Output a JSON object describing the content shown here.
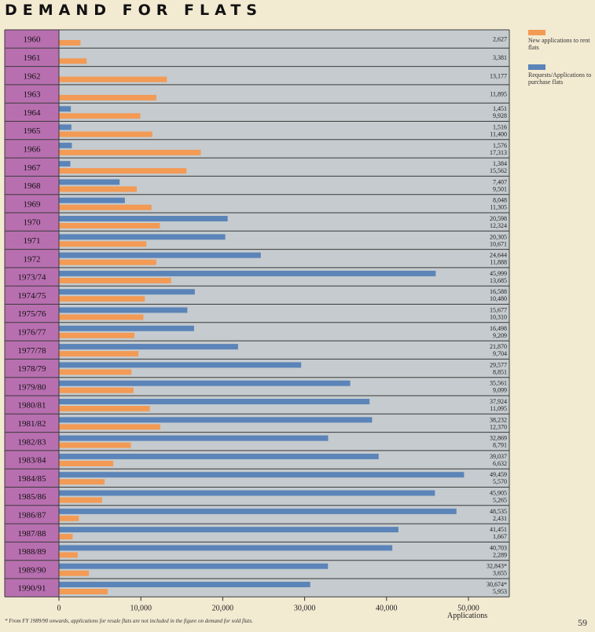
{
  "page": {
    "title": "DEMAND FOR FLATS",
    "footnote": "* From FY 1989/90 onwards, applications for resale flats are not included in the figure on demand for sold flats.",
    "page_number": "59"
  },
  "colors": {
    "rent": "#f39a55",
    "purchase": "#5b84b8",
    "plot_bg": "#c5cbce",
    "label_bg": "#b86fb0"
  },
  "chart_data": {
    "type": "bar",
    "orientation": "horizontal",
    "title": "DEMAND FOR FLATS",
    "xlabel": "Applications",
    "xlim": [
      0,
      55000
    ],
    "xticks": [
      "0",
      "10,000",
      "20,000",
      "30,000",
      "40,000",
      "50,000"
    ],
    "xtick_values": [
      0,
      10000,
      20000,
      30000,
      40000,
      50000
    ],
    "legend": {
      "placement": "right",
      "rent_label": "New applications to rent flats",
      "purchase_label": "Requests/Applications to purchase flats"
    },
    "categories": [
      "1960",
      "1961",
      "1962",
      "1963",
      "1964",
      "1965",
      "1966",
      "1967",
      "1968",
      "1969",
      "1970",
      "1971",
      "1972",
      "1973/74",
      "1974/75",
      "1975/76",
      "1976/77",
      "1977/78",
      "1978/79",
      "1979/80",
      "1980/81",
      "1981/82",
      "1982/83",
      "1983/84",
      "1984/85",
      "1985/86",
      "1986/87",
      "1987/88",
      "1988/89",
      "1989/90",
      "1990/91"
    ],
    "series": [
      {
        "name": "Requests/Applications to purchase flats",
        "values": [
          null,
          null,
          null,
          null,
          1451,
          1516,
          1576,
          1384,
          7407,
          8048,
          20598,
          20305,
          24644,
          45999,
          16588,
          15677,
          16498,
          21870,
          29577,
          35561,
          37924,
          38232,
          32869,
          39037,
          49459,
          45905,
          48535,
          41451,
          40703,
          32843,
          30674
        ],
        "labels": [
          "",
          "",
          "",
          "",
          "1,451",
          "1,516",
          "1,576",
          "1,384",
          "7,407",
          "8,048",
          "20,598",
          "20,305",
          "24,644",
          "45,999",
          "16,588",
          "15,677",
          "16,498",
          "21,870",
          "29,577",
          "35,561",
          "37,924",
          "38,232",
          "32,869",
          "39,037",
          "49,459",
          "45,905",
          "48,535",
          "41,451",
          "40,703",
          "32,843*",
          "30,674*"
        ]
      },
      {
        "name": "New applications to rent flats",
        "values": [
          2627,
          3381,
          13177,
          11895,
          9928,
          11400,
          17313,
          15562,
          9501,
          11305,
          12324,
          10671,
          11888,
          13685,
          10480,
          10310,
          9209,
          9704,
          8851,
          9099,
          11095,
          12370,
          8791,
          6632,
          5570,
          5265,
          2431,
          1667,
          2289,
          3655,
          5953
        ],
        "labels": [
          "2,627",
          "3,381",
          "13,177",
          "11,895",
          "9,928",
          "11,400",
          "17,313",
          "15,562",
          "9,501",
          "11,305",
          "12,324",
          "10,671",
          "11,888",
          "13,685",
          "10,480",
          "10,310",
          "9,209",
          "9,704",
          "8,851",
          "9,099",
          "11,095",
          "12,370",
          "8,791",
          "6,632",
          "5,570",
          "5,265",
          "2,431",
          "1,667",
          "2,289",
          "3,655",
          "5,953"
        ]
      }
    ]
  }
}
